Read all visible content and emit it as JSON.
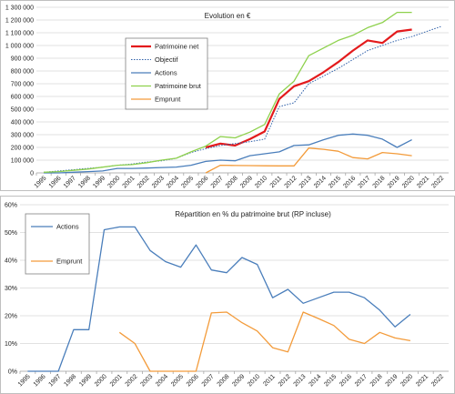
{
  "chart_data": [
    {
      "type": "line",
      "title": "Evolution  en €",
      "xlabel": "",
      "ylabel": "",
      "x": [
        "1995",
        "1996",
        "1997",
        "1998",
        "1999",
        "2000",
        "2001",
        "2002",
        "2003",
        "2004",
        "2005",
        "2006",
        "2007",
        "2008",
        "2009",
        "2010",
        "2011",
        "2012",
        "2013",
        "2014",
        "2015",
        "2016",
        "2017",
        "2018",
        "2019",
        "2020",
        "2021",
        "2022"
      ],
      "ylim": [
        0,
        1300000
      ],
      "yticks": [
        0,
        100000,
        200000,
        300000,
        400000,
        500000,
        600000,
        700000,
        800000,
        900000,
        1000000,
        1100000,
        1200000,
        1300000
      ],
      "ytick_labels": [
        "0",
        "100 000",
        "200 000",
        "300 000",
        "400 000",
        "500 000",
        "600 000",
        "700 000",
        "800 000",
        "900 000",
        "1 000 000",
        "1 100 000",
        "1 200 000",
        "1 300 000"
      ],
      "grid": true,
      "legend_position": "top-left",
      "series": [
        {
          "name": "Patrimoine net",
          "color": "#e31a1c",
          "style": "solid-thick",
          "values": [
            null,
            null,
            null,
            null,
            null,
            null,
            null,
            null,
            null,
            null,
            null,
            200000,
            230000,
            215000,
            265000,
            325000,
            580000,
            680000,
            720000,
            790000,
            870000,
            960000,
            1040000,
            1020000,
            1110000,
            1125000,
            null,
            null
          ]
        },
        {
          "name": "Objectif",
          "color": "#2e5fa8",
          "style": "dotted",
          "values": [
            5000,
            15000,
            25000,
            35000,
            45000,
            60000,
            70000,
            85000,
            95000,
            115000,
            160000,
            190000,
            215000,
            230000,
            245000,
            265000,
            520000,
            550000,
            700000,
            760000,
            820000,
            890000,
            960000,
            1000000,
            1040000,
            1070000,
            1110000,
            1150000
          ]
        },
        {
          "name": "Actions",
          "color": "#4a7ebb",
          "style": "solid",
          "values": [
            0,
            0,
            5000,
            10000,
            15000,
            35000,
            35000,
            38000,
            42000,
            46000,
            60000,
            90000,
            100000,
            95000,
            135000,
            150000,
            165000,
            215000,
            220000,
            260000,
            295000,
            305000,
            295000,
            265000,
            200000,
            260000,
            null,
            null
          ]
        },
        {
          "name": "Patrimoine brut",
          "color": "#8ed14d",
          "style": "solid",
          "values": [
            5000,
            10000,
            20000,
            30000,
            45000,
            60000,
            65000,
            80000,
            100000,
            115000,
            165000,
            210000,
            285000,
            275000,
            320000,
            380000,
            620000,
            720000,
            920000,
            980000,
            1040000,
            1080000,
            1140000,
            1180000,
            1260000,
            1260000,
            null,
            null
          ]
        },
        {
          "name": "Emprunt",
          "color": "#f39b3a",
          "style": "solid",
          "values": [
            null,
            null,
            null,
            null,
            null,
            null,
            null,
            null,
            null,
            null,
            null,
            0,
            60000,
            58000,
            57000,
            56000,
            55000,
            55000,
            195000,
            185000,
            170000,
            120000,
            110000,
            160000,
            150000,
            135000,
            null,
            null
          ]
        }
      ]
    },
    {
      "type": "line",
      "title": "Répartition en % du patrimoine brut (RP incluse)",
      "xlabel": "",
      "ylabel": "",
      "x": [
        "1995",
        "1996",
        "1997",
        "1998",
        "1999",
        "2000",
        "2001",
        "2002",
        "2003",
        "2004",
        "2005",
        "2006",
        "2007",
        "2008",
        "2009",
        "2010",
        "2011",
        "2012",
        "2013",
        "2014",
        "2015",
        "2016",
        "2017",
        "2018",
        "2019",
        "2020",
        "2021",
        "2022"
      ],
      "ylim": [
        0,
        60
      ],
      "yticks": [
        0,
        10,
        20,
        30,
        40,
        50,
        60
      ],
      "ytick_labels": [
        "0%",
        "10%",
        "20%",
        "30%",
        "40%",
        "50%",
        "60%"
      ],
      "grid": true,
      "legend_position": "top-left",
      "series": [
        {
          "name": "Actions",
          "color": "#4a7ebb",
          "values": [
            0,
            0,
            0,
            15,
            15,
            51,
            52,
            52,
            43.5,
            39.5,
            37.5,
            45.5,
            36.5,
            35.5,
            41,
            38.5,
            26.5,
            29.5,
            24.5,
            26.5,
            28.5,
            28.5,
            26.5,
            22,
            16,
            20.5,
            null,
            null
          ]
        },
        {
          "name": "Emprunt",
          "color": "#f39b3a",
          "values": [
            null,
            null,
            null,
            null,
            null,
            null,
            14,
            10,
            0,
            0,
            0,
            0,
            21,
            21.3,
            17.5,
            14.5,
            8.5,
            7,
            21.3,
            19,
            16.5,
            11.5,
            10,
            14,
            12,
            11,
            null,
            null
          ]
        }
      ]
    }
  ]
}
